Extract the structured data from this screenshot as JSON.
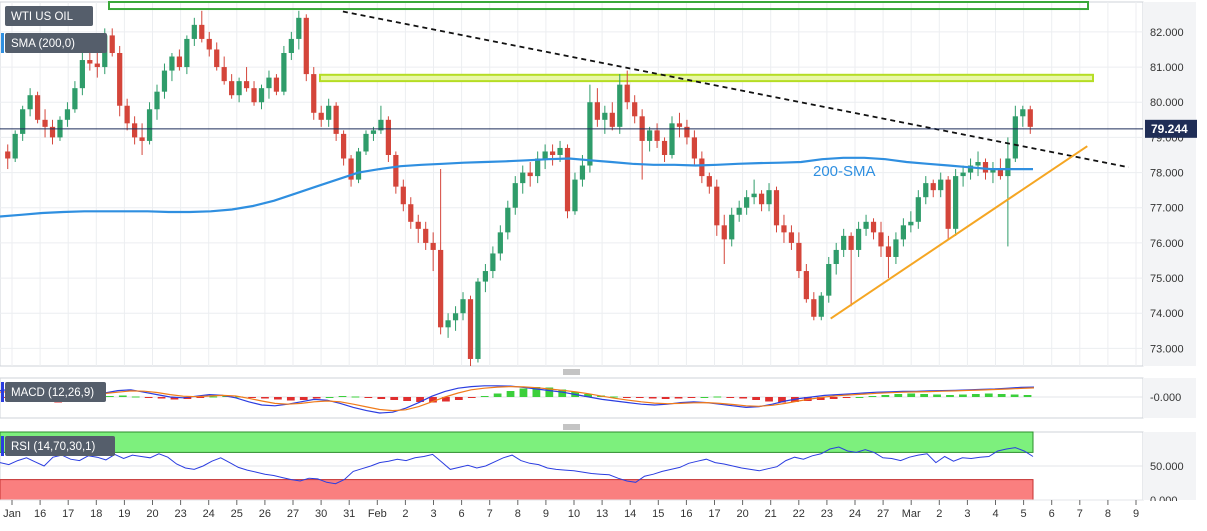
{
  "chart_data": [
    {
      "type": "candlestick",
      "title": "WTI US OIL",
      "indicator_label": "SMA (200,0)",
      "last_price": "79.244",
      "y_ticks": [
        "82.000",
        "81.000",
        "80.000",
        "79.000",
        "78.000",
        "77.000",
        "76.000",
        "75.000",
        "74.000",
        "73.000"
      ],
      "ylim": [
        72.5,
        82.85
      ],
      "x_ticks": [
        "Jan",
        "16",
        "17",
        "18",
        "19",
        "20",
        "23",
        "24",
        "25",
        "26",
        "27",
        "30",
        "31",
        "Feb",
        "2",
        "3",
        "6",
        "7",
        "8",
        "9",
        "10",
        "13",
        "14",
        "15",
        "16",
        "17",
        "20",
        "21",
        "22",
        "23",
        "24",
        "27",
        "Mar",
        "2",
        "3",
        "4",
        "5",
        "6",
        "7",
        "8",
        "9"
      ],
      "annotations": [
        {
          "text": "200-SMA",
          "color": "#2f8fe0"
        }
      ],
      "candles": [
        [
          78.6,
          78.8,
          78.1,
          78.4
        ],
        [
          78.4,
          79.2,
          78.3,
          79.1
        ],
        [
          79.1,
          79.9,
          78.9,
          79.8
        ],
        [
          79.8,
          80.4,
          79.6,
          80.2
        ],
        [
          80.2,
          80.3,
          79.4,
          79.5
        ],
        [
          79.5,
          79.8,
          79.0,
          79.3
        ],
        [
          79.3,
          79.5,
          78.8,
          79.0
        ],
        [
          79.0,
          79.6,
          78.9,
          79.5
        ],
        [
          79.5,
          80.0,
          79.3,
          79.8
        ],
        [
          79.8,
          80.6,
          79.7,
          80.4
        ],
        [
          80.4,
          81.4,
          80.2,
          81.2
        ],
        [
          81.2,
          81.8,
          80.9,
          81.1
        ],
        [
          81.1,
          81.5,
          80.7,
          81.0
        ],
        [
          81.0,
          82.1,
          80.8,
          81.9
        ],
        [
          81.9,
          82.1,
          81.3,
          81.4
        ],
        [
          81.4,
          81.6,
          79.6,
          79.9
        ],
        [
          79.9,
          80.1,
          79.2,
          79.4
        ],
        [
          79.4,
          79.6,
          78.8,
          79.0
        ],
        [
          79.0,
          79.4,
          78.5,
          78.9
        ],
        [
          78.9,
          80.0,
          78.8,
          79.8
        ],
        [
          79.8,
          80.5,
          79.5,
          80.3
        ],
        [
          80.3,
          81.1,
          80.1,
          80.9
        ],
        [
          80.9,
          81.4,
          80.6,
          81.3
        ],
        [
          81.3,
          81.5,
          80.9,
          81.0
        ],
        [
          81.0,
          81.9,
          80.8,
          81.8
        ],
        [
          81.8,
          82.4,
          81.6,
          82.2
        ],
        [
          82.2,
          82.6,
          81.7,
          81.8
        ],
        [
          81.8,
          82.0,
          81.3,
          81.5
        ],
        [
          81.5,
          81.7,
          80.9,
          81.0
        ],
        [
          81.0,
          81.3,
          80.5,
          80.6
        ],
        [
          80.6,
          80.8,
          80.1,
          80.2
        ],
        [
          80.2,
          80.7,
          80.0,
          80.6
        ],
        [
          80.6,
          81.0,
          80.3,
          80.4
        ],
        [
          80.4,
          80.6,
          79.9,
          80.0
        ],
        [
          80.0,
          80.5,
          79.8,
          80.4
        ],
        [
          80.4,
          80.9,
          80.1,
          80.7
        ],
        [
          80.7,
          80.8,
          80.2,
          80.3
        ],
        [
          80.3,
          81.6,
          80.2,
          81.4
        ],
        [
          81.4,
          82.0,
          81.2,
          81.8
        ],
        [
          81.8,
          82.6,
          81.5,
          82.4
        ],
        [
          82.4,
          82.5,
          80.6,
          80.8
        ],
        [
          80.8,
          81.0,
          79.5,
          79.7
        ],
        [
          79.7,
          79.9,
          79.3,
          79.5
        ],
        [
          79.5,
          80.1,
          79.3,
          79.9
        ],
        [
          79.9,
          80.0,
          78.9,
          79.1
        ],
        [
          79.1,
          79.2,
          78.2,
          78.4
        ],
        [
          78.4,
          78.5,
          77.6,
          77.8
        ],
        [
          77.8,
          78.7,
          77.7,
          78.6
        ],
        [
          78.6,
          79.2,
          78.5,
          79.1
        ],
        [
          79.1,
          79.3,
          78.9,
          79.2
        ],
        [
          79.2,
          79.9,
          79.1,
          79.5
        ],
        [
          79.5,
          79.6,
          78.3,
          78.5
        ],
        [
          78.5,
          78.6,
          77.4,
          77.6
        ],
        [
          77.6,
          77.8,
          76.9,
          77.1
        ],
        [
          77.1,
          77.3,
          76.4,
          76.6
        ],
        [
          76.6,
          76.8,
          76.0,
          76.4
        ],
        [
          76.4,
          76.6,
          75.8,
          76.0
        ],
        [
          76.0,
          76.3,
          75.2,
          75.8
        ],
        [
          75.8,
          78.1,
          73.4,
          73.6
        ],
        [
          73.6,
          74.0,
          73.3,
          73.8
        ],
        [
          73.8,
          74.2,
          73.5,
          74.0
        ],
        [
          74.0,
          74.6,
          73.8,
          74.4
        ],
        [
          74.4,
          74.5,
          72.5,
          72.7
        ],
        [
          72.7,
          75.0,
          72.6,
          74.9
        ],
        [
          74.9,
          75.4,
          74.6,
          75.2
        ],
        [
          75.2,
          75.9,
          75.0,
          75.7
        ],
        [
          75.7,
          76.5,
          75.5,
          76.3
        ],
        [
          76.3,
          77.2,
          76.1,
          77.0
        ],
        [
          77.0,
          77.9,
          76.8,
          77.7
        ],
        [
          77.7,
          78.2,
          77.4,
          78.0
        ],
        [
          78.0,
          78.3,
          77.6,
          77.9
        ],
        [
          77.9,
          78.6,
          77.7,
          78.4
        ],
        [
          78.4,
          78.8,
          78.1,
          78.6
        ],
        [
          78.6,
          78.8,
          78.2,
          78.5
        ],
        [
          78.5,
          78.9,
          78.3,
          78.7
        ],
        [
          78.7,
          78.8,
          76.7,
          76.9
        ],
        [
          76.9,
          78.0,
          76.8,
          77.8
        ],
        [
          77.8,
          78.5,
          77.6,
          78.2
        ],
        [
          78.2,
          80.5,
          78.0,
          80.0
        ],
        [
          80.0,
          80.4,
          79.3,
          79.5
        ],
        [
          79.5,
          79.9,
          79.1,
          79.7
        ],
        [
          79.7,
          80.0,
          79.2,
          79.3
        ],
        [
          79.3,
          80.8,
          79.1,
          80.5
        ],
        [
          80.5,
          80.9,
          79.8,
          80.0
        ],
        [
          80.0,
          80.2,
          79.4,
          79.6
        ],
        [
          79.6,
          79.8,
          77.8,
          78.9
        ],
        [
          78.9,
          79.3,
          78.6,
          79.2
        ],
        [
          79.2,
          79.4,
          78.7,
          78.9
        ],
        [
          78.9,
          79.0,
          78.3,
          78.5
        ],
        [
          78.5,
          79.6,
          78.4,
          79.4
        ],
        [
          79.4,
          79.7,
          79.0,
          79.3
        ],
        [
          79.3,
          79.5,
          78.8,
          79.0
        ],
        [
          79.0,
          79.2,
          78.2,
          78.4
        ],
        [
          78.4,
          78.6,
          77.7,
          77.9
        ],
        [
          77.9,
          78.0,
          77.4,
          77.6
        ],
        [
          77.6,
          77.8,
          76.2,
          76.5
        ],
        [
          76.5,
          76.8,
          75.4,
          76.1
        ],
        [
          76.1,
          77.0,
          75.9,
          76.8
        ],
        [
          76.8,
          77.2,
          76.6,
          77.0
        ],
        [
          77.0,
          77.5,
          76.8,
          77.3
        ],
        [
          77.3,
          77.8,
          77.1,
          77.4
        ],
        [
          77.4,
          77.5,
          76.9,
          77.1
        ],
        [
          77.1,
          77.7,
          76.9,
          77.5
        ],
        [
          77.5,
          77.6,
          76.3,
          76.5
        ],
        [
          76.5,
          76.8,
          76.0,
          76.3
        ],
        [
          76.3,
          76.5,
          75.8,
          76.0
        ],
        [
          76.0,
          76.3,
          75.0,
          75.2
        ],
        [
          75.2,
          75.4,
          74.3,
          74.4
        ],
        [
          74.4,
          74.6,
          73.8,
          73.9
        ],
        [
          73.9,
          74.6,
          73.8,
          74.5
        ],
        [
          74.5,
          75.6,
          74.3,
          75.4
        ],
        [
          75.4,
          76.0,
          75.1,
          75.8
        ],
        [
          75.8,
          76.4,
          75.6,
          76.2
        ],
        [
          76.2,
          76.3,
          74.2,
          75.8
        ],
        [
          75.8,
          76.6,
          75.6,
          76.4
        ],
        [
          76.4,
          76.8,
          76.2,
          76.6
        ],
        [
          76.6,
          76.7,
          76.1,
          76.3
        ],
        [
          76.3,
          76.6,
          75.6,
          75.9
        ],
        [
          75.9,
          76.2,
          75.0,
          75.6
        ],
        [
          75.6,
          76.3,
          75.4,
          76.1
        ],
        [
          76.1,
          76.7,
          75.9,
          76.5
        ],
        [
          76.5,
          76.9,
          76.3,
          76.6
        ],
        [
          76.6,
          77.5,
          76.4,
          77.3
        ],
        [
          77.3,
          77.9,
          77.1,
          77.7
        ],
        [
          77.7,
          77.8,
          77.3,
          77.5
        ],
        [
          77.5,
          78.0,
          77.3,
          77.8
        ],
        [
          77.8,
          77.9,
          76.1,
          76.4
        ],
        [
          76.4,
          78.1,
          76.2,
          77.9
        ],
        [
          77.9,
          78.2,
          77.6,
          78.0
        ],
        [
          78.0,
          78.4,
          77.8,
          78.2
        ],
        [
          78.2,
          78.6,
          77.9,
          78.3
        ],
        [
          78.3,
          78.4,
          77.8,
          78.0
        ],
        [
          78.0,
          78.3,
          77.7,
          78.1
        ],
        [
          78.1,
          78.4,
          77.8,
          77.9
        ],
        [
          77.9,
          79.0,
          75.9,
          78.4
        ],
        [
          78.4,
          79.9,
          78.3,
          79.6
        ],
        [
          79.6,
          79.9,
          79.3,
          79.8
        ],
        [
          79.8,
          79.9,
          79.1,
          79.3
        ]
      ],
      "series": [
        {
          "name": "200-SMA",
          "values": [
            76.75,
            76.8,
            76.85,
            76.88,
            76.9,
            76.9,
            76.9,
            76.9,
            76.88,
            76.88,
            76.9,
            76.95,
            77.05,
            77.2,
            77.4,
            77.6,
            77.8,
            78.0,
            78.1,
            78.18,
            78.22,
            78.25,
            78.28,
            78.3,
            78.32,
            78.35,
            78.38,
            78.4,
            78.35,
            78.3,
            78.25,
            78.22,
            78.22,
            78.2,
            78.22,
            78.25,
            78.27,
            78.28,
            78.3,
            78.38,
            78.42,
            78.42,
            78.38,
            78.3,
            78.25,
            78.2,
            78.15,
            78.1,
            78.1,
            78.1
          ]
        }
      ],
      "lines": [
        {
          "style": "dashed",
          "from": [
            0.3,
            82.58
          ],
          "to": [
            0.9,
            78.15
          ]
        },
        {
          "style": "solid",
          "color": "#f5a623",
          "from": [
            0.69,
            73.85
          ],
          "to": [
            0.925,
            78.75
          ]
        }
      ],
      "zones": [
        {
          "color": "#3aa83a",
          "range": [
            82.65,
            82.85
          ]
        },
        {
          "color": "#b5dd24",
          "range": [
            80.6,
            80.78
          ]
        }
      ]
    },
    {
      "type": "macd",
      "label": "MACD (12,26,9)",
      "y_ticks": [
        "-0.000"
      ],
      "histogram": [
        -0.1,
        -0.2,
        -0.3,
        -0.45,
        -0.55,
        -0.5,
        -0.35,
        -0.1,
        0.1,
        0.15,
        0.05,
        -0.05,
        -0.15,
        -0.25,
        -0.2,
        -0.1,
        0.05,
        0.1,
        0.05,
        -0.05,
        -0.15,
        -0.25,
        -0.35,
        -0.3,
        -0.15,
        0.0,
        0.1,
        0.05,
        -0.1,
        -0.2,
        -0.3,
        -0.4,
        -0.5,
        -0.55,
        -0.45,
        -0.3,
        -0.1,
        0.1,
        0.35,
        0.6,
        0.85,
        1.0,
        0.95,
        0.75,
        0.5,
        0.3,
        0.15,
        0.05,
        -0.05,
        -0.1,
        -0.15,
        -0.2,
        -0.15,
        -0.05,
        0.0,
        0.05,
        -0.05,
        -0.15,
        -0.3,
        -0.45,
        -0.55,
        -0.5,
        -0.4,
        -0.3,
        -0.2,
        -0.1,
        0.0,
        0.1,
        0.2,
        0.3,
        0.35,
        0.3,
        0.25,
        0.2,
        0.25,
        0.3,
        0.35,
        0.3,
        0.25,
        0.2
      ],
      "macd_line": [
        0.4,
        0.5,
        0.6,
        0.55,
        0.45,
        0.35,
        0.2,
        0.1,
        0.25,
        0.4,
        0.45,
        0.3,
        0.15,
        0.0,
        -0.05,
        0.05,
        0.15,
        0.1,
        -0.05,
        -0.3,
        -0.5,
        -0.55,
        -0.45,
        -0.3,
        -0.15,
        -0.2,
        -0.4,
        -0.65,
        -0.85,
        -1.0,
        -0.95,
        -0.7,
        -0.35,
        0.05,
        0.35,
        0.55,
        0.65,
        0.7,
        0.7,
        0.68,
        0.6,
        0.5,
        0.4,
        0.3,
        0.15,
        0.0,
        -0.15,
        -0.25,
        -0.35,
        -0.45,
        -0.5,
        -0.45,
        -0.35,
        -0.3,
        -0.35,
        -0.45,
        -0.55,
        -0.65,
        -0.6,
        -0.45,
        -0.25,
        -0.1,
        0.0,
        0.1,
        0.15,
        0.2,
        0.25,
        0.3,
        0.32,
        0.35,
        0.35,
        0.38,
        0.4,
        0.42,
        0.45,
        0.48,
        0.5,
        0.55,
        0.6,
        0.62
      ],
      "signal_line": [
        0.3,
        0.35,
        0.45,
        0.5,
        0.5,
        0.45,
        0.35,
        0.25,
        0.22,
        0.3,
        0.38,
        0.36,
        0.28,
        0.15,
        0.05,
        0.02,
        0.06,
        0.1,
        0.06,
        -0.08,
        -0.25,
        -0.4,
        -0.45,
        -0.4,
        -0.3,
        -0.25,
        -0.3,
        -0.45,
        -0.62,
        -0.78,
        -0.85,
        -0.8,
        -0.6,
        -0.3,
        0.0,
        0.25,
        0.45,
        0.55,
        0.62,
        0.65,
        0.63,
        0.58,
        0.5,
        0.42,
        0.32,
        0.2,
        0.05,
        -0.08,
        -0.2,
        -0.3,
        -0.38,
        -0.42,
        -0.4,
        -0.36,
        -0.35,
        -0.4,
        -0.47,
        -0.55,
        -0.58,
        -0.52,
        -0.4,
        -0.25,
        -0.12,
        0.0,
        0.08,
        0.13,
        0.18,
        0.23,
        0.27,
        0.3,
        0.32,
        0.34,
        0.36,
        0.38,
        0.41,
        0.44,
        0.47,
        0.5,
        0.54,
        0.57
      ]
    },
    {
      "type": "rsi",
      "label": "RSI (14,70,30,1)",
      "y_ticks": [
        "50.000",
        "0.000"
      ],
      "ylim": [
        0,
        100
      ],
      "zones": [
        {
          "color": "#7df07d",
          "range": [
            70,
            100
          ]
        },
        {
          "color": "#fa7f7f",
          "range": [
            0,
            30
          ]
        }
      ],
      "values": [
        55,
        52,
        58,
        62,
        56,
        50,
        63,
        66,
        60,
        58,
        65,
        63,
        59,
        67,
        61,
        66,
        64,
        62,
        68,
        63,
        53,
        47,
        45,
        50,
        57,
        62,
        55,
        48,
        44,
        41,
        38,
        36,
        33,
        30,
        28,
        32,
        31,
        26,
        24,
        30,
        42,
        46,
        50,
        55,
        57,
        60,
        58,
        62,
        64,
        67,
        56,
        45,
        48,
        51,
        47,
        50,
        56,
        62,
        66,
        58,
        54,
        52,
        47,
        45,
        44,
        43,
        41,
        39,
        38,
        37,
        32,
        28,
        26,
        35,
        38,
        42,
        45,
        48,
        54,
        57,
        60,
        55,
        53,
        50,
        47,
        45,
        43,
        46,
        49,
        58,
        63,
        60,
        65,
        68,
        75,
        78,
        72,
        70,
        74,
        70,
        62,
        61,
        58,
        63,
        66,
        68,
        55,
        64,
        57,
        62,
        61,
        63,
        64,
        72,
        75,
        77,
        72,
        64
      ]
    }
  ]
}
